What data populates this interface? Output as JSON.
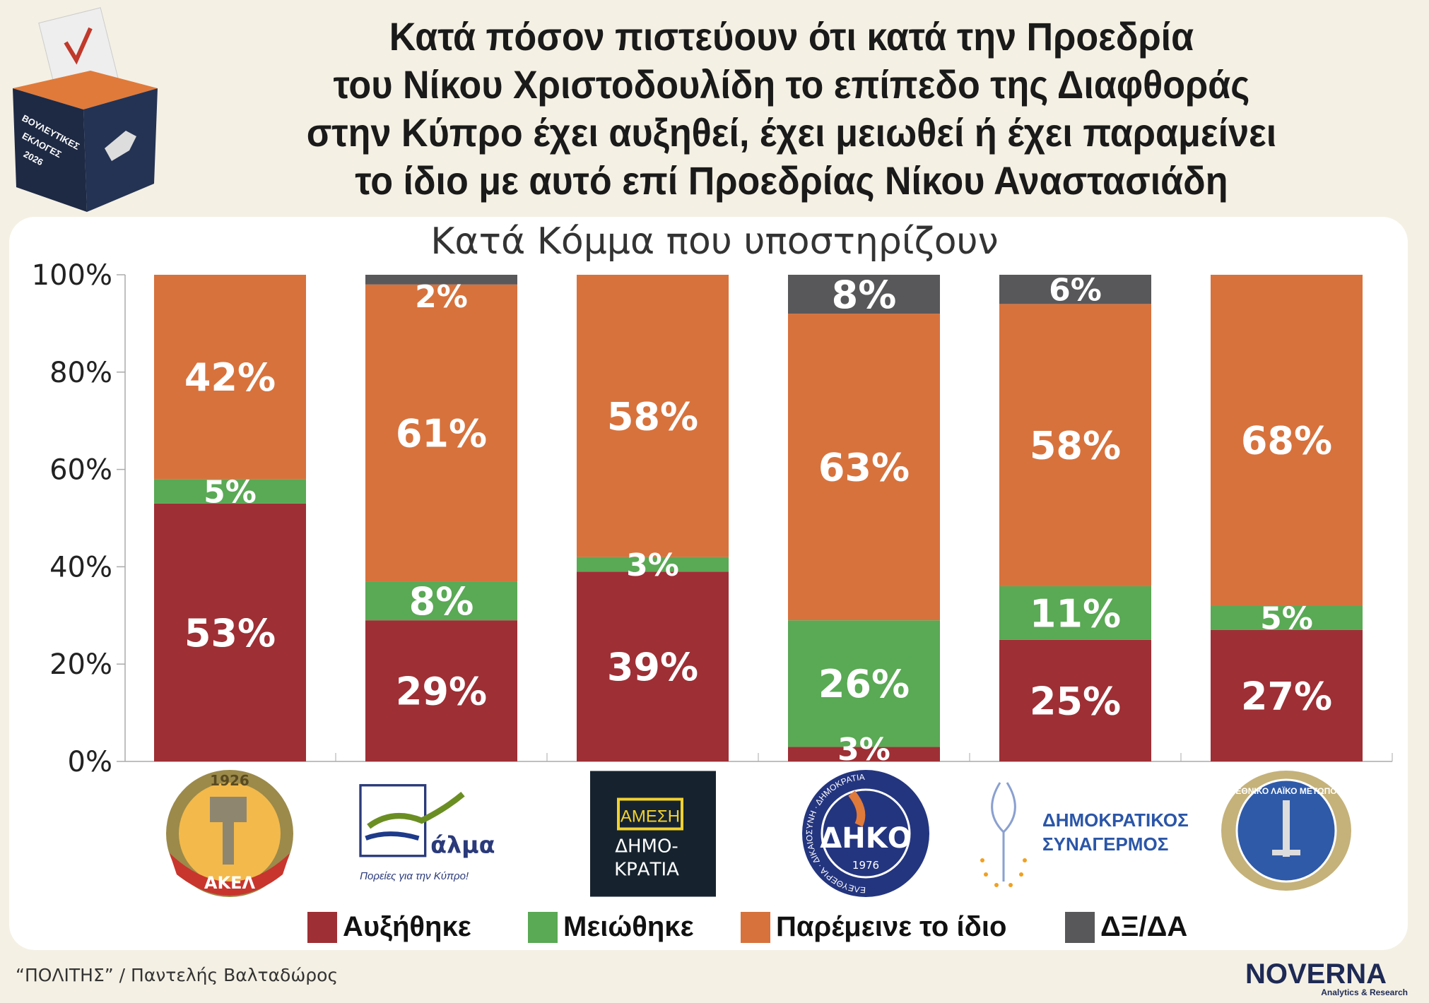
{
  "header": {
    "title_lines": [
      "Κατά πόσον πιστεύουν ότι κατά την Προεδρία",
      "του Νίκου Χριστοδουλίδη το επίπεδο της Διαφθοράς",
      "στην Κύπρο έχει αυξηθεί, έχει μειωθεί ή έχει παραμείνει",
      "το ίδιο με αυτό επί Προεδρίας Νίκου Αναστασιάδη"
    ],
    "ballot_box": {
      "lines": [
        "ΒΟΥΛΕΥΤΙΚΕΣ",
        "ΕΚΛΟΓΕΣ",
        "2026"
      ]
    }
  },
  "chart_data": {
    "type": "bar",
    "stacked": true,
    "title": "Κατά Κόμμα που υποστηρίζουν",
    "categories": [
      "ΑΚΕΛ",
      "Άλμα",
      "Άμεση Δημοκρατία",
      "ΔΗΚΟ",
      "ΔΗΣΥ",
      "ΕΛΑΜ"
    ],
    "ylim": [
      0,
      100
    ],
    "yticks": [
      "0%",
      "20%",
      "40%",
      "60%",
      "80%",
      "100%"
    ],
    "series": [
      {
        "name": "Αυξήθηκε",
        "color": "#9e2f35",
        "values": [
          53,
          29,
          39,
          3,
          25,
          27
        ]
      },
      {
        "name": "Μειώθηκε",
        "color": "#5aa955",
        "values": [
          5,
          8,
          3,
          26,
          11,
          5
        ]
      },
      {
        "name": "Παρέμεινε το ίδιο",
        "color": "#d7723d",
        "values": [
          42,
          61,
          58,
          63,
          58,
          68
        ]
      },
      {
        "name": "ΔΞ/ΔΑ",
        "color": "#58585a",
        "values": [
          0,
          2,
          0,
          8,
          6,
          0
        ]
      }
    ],
    "legend": "bottom"
  },
  "logos": {
    "akel": {
      "year": "1926",
      "name": "ΑΚΕΛ"
    },
    "alma": {
      "name": "άλμα",
      "slogan": "Πορείες για την Κύπρο!"
    },
    "amesi": {
      "line1": "ΑΜΕΣΗ",
      "line2": "ΔΗΜΟ-",
      "line3": "ΚΡΑΤΙΑ"
    },
    "diko": {
      "name": "ΔΗΚΟ",
      "year": "1976",
      "ring": "ΕΛΕΥΘΕΡΙΑ · ΔΙΚΑΙΟΣΥΝΗ · ΔΗΜΟΚΡΑΤΙΑ"
    },
    "disy": {
      "line1": "ΔΗΜΟΚΡΑΤΙΚΟΣ",
      "line2": "ΣΥΝΑΓΕΡΜΟΣ"
    },
    "elam": {
      "ring": "ΕΘΝΙΚΟ ΛΑΪΚΟ ΜΕΤΩΠΟ"
    }
  },
  "footer": {
    "source": "“ΠΟΛΙΤΗΣ” / Παντελής Βαλταδώρος",
    "brand": "NOVERNA",
    "brand_sub": "Analytics & Research"
  }
}
